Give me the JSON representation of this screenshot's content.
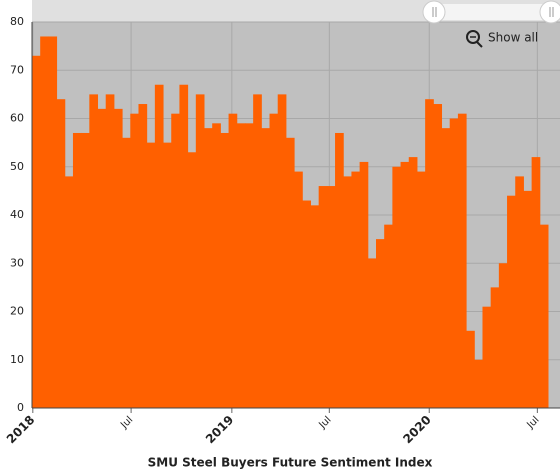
{
  "chart_data": {
    "type": "step-area",
    "title": "SMU Steel Buyers Future Sentiment Index",
    "button": "Show all",
    "color": "#ff6000",
    "categories": [
      null,
      null,
      null,
      null,
      null,
      null,
      null,
      null,
      null,
      null,
      null,
      null,
      null,
      null,
      null,
      null,
      null,
      null,
      null,
      null,
      null,
      null,
      null,
      null,
      null,
      null,
      null,
      null,
      null,
      null,
      null,
      null,
      null,
      null,
      null,
      null,
      null,
      null,
      null,
      null,
      null,
      null,
      null,
      null,
      null,
      null,
      null,
      null,
      null,
      null,
      null,
      null,
      null,
      null,
      null,
      null,
      null,
      null,
      null,
      null,
      null,
      null,
      null
    ],
    "values": [
      73,
      77,
      77,
      64,
      48,
      57,
      57,
      65,
      62,
      65,
      62,
      56,
      61,
      63,
      55,
      67,
      55,
      61,
      67,
      53,
      65,
      58,
      59,
      57,
      61,
      59,
      59,
      65,
      58,
      61,
      65,
      56,
      49,
      43,
      42,
      46,
      46,
      57,
      48,
      49,
      51,
      31,
      35,
      38,
      50,
      51,
      52,
      49,
      64,
      63,
      58,
      60,
      61,
      16,
      10,
      21,
      25,
      30,
      44,
      48,
      45,
      52,
      38
    ],
    "xlim": [
      0,
      63
    ],
    "xticks": [
      {
        "value": 0.1,
        "label": "2018"
      },
      {
        "value": 12.1,
        "label": "Jul"
      },
      {
        "value": 24.4,
        "label": "2019"
      },
      {
        "value": 36.3,
        "label": "Jul"
      },
      {
        "value": 48.5,
        "label": "2020"
      },
      {
        "value": 61.7,
        "label": "Jul"
      }
    ],
    "ylim": [
      0,
      80
    ],
    "yticks": [
      0,
      10,
      20,
      30,
      40,
      50,
      60,
      70,
      80
    ],
    "grid": true
  }
}
